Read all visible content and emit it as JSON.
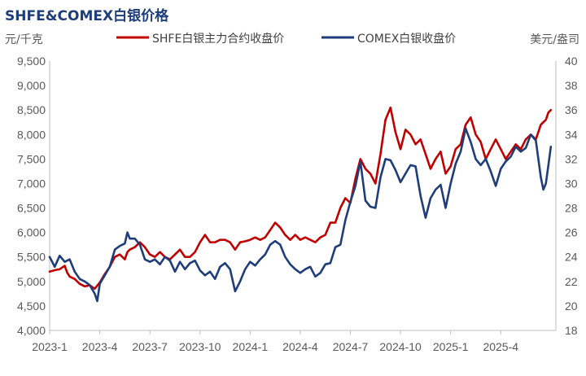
{
  "chart_data": {
    "type": "line",
    "title": "SHFE&COMEX白银价格",
    "left_unit": "元/千克",
    "right_unit": "美元/盎司",
    "x_tick_labels": [
      "2023-1",
      "2023-4",
      "2023-7",
      "2023-10",
      "2024-1",
      "2024-4",
      "2024-7",
      "2024-10",
      "2025-1",
      "2025-4"
    ],
    "left_axis": {
      "min": 4000,
      "max": 9500,
      "step": 500,
      "tick_labels": [
        "4,000",
        "4,500",
        "5,000",
        "5,500",
        "6,000",
        "6,500",
        "7,000",
        "7,500",
        "8,000",
        "8,500",
        "9,000",
        "9,500"
      ]
    },
    "right_axis": {
      "min": 18,
      "max": 40,
      "step": 2,
      "tick_labels": [
        "18",
        "20",
        "22",
        "24",
        "26",
        "28",
        "30",
        "32",
        "34",
        "36",
        "38",
        "40"
      ]
    },
    "x_range": [
      0,
      10.1
    ],
    "series": [
      {
        "name": "SHFE白银主力合约收盘价",
        "axis": "left",
        "color": "#c00000",
        "points": [
          [
            0.0,
            5200
          ],
          [
            0.1,
            5230
          ],
          [
            0.2,
            5250
          ],
          [
            0.3,
            5320
          ],
          [
            0.35,
            5180
          ],
          [
            0.4,
            5100
          ],
          [
            0.5,
            5050
          ],
          [
            0.6,
            4950
          ],
          [
            0.7,
            4900
          ],
          [
            0.8,
            4920
          ],
          [
            0.9,
            4850
          ],
          [
            1.0,
            4980
          ],
          [
            1.1,
            5150
          ],
          [
            1.2,
            5300
          ],
          [
            1.3,
            5500
          ],
          [
            1.4,
            5550
          ],
          [
            1.5,
            5450
          ],
          [
            1.55,
            5600
          ],
          [
            1.6,
            5650
          ],
          [
            1.7,
            5700
          ],
          [
            1.8,
            5800
          ],
          [
            1.9,
            5700
          ],
          [
            2.0,
            5550
          ],
          [
            2.1,
            5500
          ],
          [
            2.2,
            5600
          ],
          [
            2.3,
            5500
          ],
          [
            2.4,
            5450
          ],
          [
            2.5,
            5550
          ],
          [
            2.6,
            5650
          ],
          [
            2.7,
            5500
          ],
          [
            2.8,
            5500
          ],
          [
            2.9,
            5600
          ],
          [
            3.0,
            5800
          ],
          [
            3.1,
            5950
          ],
          [
            3.2,
            5800
          ],
          [
            3.3,
            5800
          ],
          [
            3.4,
            5850
          ],
          [
            3.5,
            5850
          ],
          [
            3.6,
            5800
          ],
          [
            3.7,
            5650
          ],
          [
            3.8,
            5800
          ],
          [
            3.9,
            5820
          ],
          [
            4.0,
            5850
          ],
          [
            4.1,
            5900
          ],
          [
            4.2,
            5850
          ],
          [
            4.3,
            5900
          ],
          [
            4.4,
            6050
          ],
          [
            4.5,
            6200
          ],
          [
            4.6,
            6100
          ],
          [
            4.7,
            5950
          ],
          [
            4.8,
            5850
          ],
          [
            4.9,
            5950
          ],
          [
            5.0,
            5850
          ],
          [
            5.1,
            5900
          ],
          [
            5.2,
            5850
          ],
          [
            5.3,
            5800
          ],
          [
            5.4,
            5900
          ],
          [
            5.5,
            5950
          ],
          [
            5.6,
            6200
          ],
          [
            5.7,
            6200
          ],
          [
            5.8,
            6500
          ],
          [
            5.9,
            6700
          ],
          [
            6.0,
            6600
          ],
          [
            6.1,
            7100
          ],
          [
            6.2,
            7500
          ],
          [
            6.3,
            7300
          ],
          [
            6.4,
            7200
          ],
          [
            6.5,
            7000
          ],
          [
            6.6,
            7600
          ],
          [
            6.7,
            8300
          ],
          [
            6.8,
            8550
          ],
          [
            6.9,
            8050
          ],
          [
            7.0,
            7700
          ],
          [
            7.1,
            8100
          ],
          [
            7.2,
            8000
          ],
          [
            7.3,
            7800
          ],
          [
            7.4,
            7900
          ],
          [
            7.5,
            7600
          ],
          [
            7.6,
            7300
          ],
          [
            7.7,
            7500
          ],
          [
            7.8,
            7650
          ],
          [
            7.9,
            7200
          ],
          [
            8.0,
            7350
          ],
          [
            8.1,
            7700
          ],
          [
            8.2,
            7800
          ],
          [
            8.3,
            8200
          ],
          [
            8.4,
            8350
          ],
          [
            8.5,
            8000
          ],
          [
            8.6,
            7850
          ],
          [
            8.7,
            7500
          ],
          [
            8.8,
            7700
          ],
          [
            8.9,
            7900
          ],
          [
            9.0,
            7700
          ],
          [
            9.1,
            7500
          ],
          [
            9.2,
            7650
          ],
          [
            9.3,
            7800
          ],
          [
            9.4,
            7700
          ],
          [
            9.5,
            7900
          ],
          [
            9.6,
            8000
          ],
          [
            9.7,
            7900
          ],
          [
            9.8,
            8200
          ],
          [
            9.9,
            8300
          ],
          [
            9.95,
            8450
          ],
          [
            10.0,
            8500
          ]
        ]
      },
      {
        "name": "COMEX白银收盘价",
        "axis": "right",
        "color": "#1f3d7a",
        "points": [
          [
            0.0,
            24.0
          ],
          [
            0.1,
            23.2
          ],
          [
            0.2,
            24.1
          ],
          [
            0.3,
            23.6
          ],
          [
            0.4,
            23.8
          ],
          [
            0.5,
            22.8
          ],
          [
            0.6,
            22.2
          ],
          [
            0.7,
            22.0
          ],
          [
            0.8,
            21.7
          ],
          [
            0.9,
            21.0
          ],
          [
            0.95,
            20.4
          ],
          [
            1.0,
            21.8
          ],
          [
            1.1,
            22.5
          ],
          [
            1.2,
            23.2
          ],
          [
            1.3,
            24.6
          ],
          [
            1.4,
            24.9
          ],
          [
            1.5,
            25.1
          ],
          [
            1.55,
            26.0
          ],
          [
            1.6,
            25.5
          ],
          [
            1.7,
            25.5
          ],
          [
            1.8,
            25.0
          ],
          [
            1.9,
            23.8
          ],
          [
            2.0,
            23.6
          ],
          [
            2.1,
            23.8
          ],
          [
            2.2,
            23.4
          ],
          [
            2.3,
            24.0
          ],
          [
            2.4,
            23.7
          ],
          [
            2.5,
            22.8
          ],
          [
            2.6,
            23.6
          ],
          [
            2.7,
            23.0
          ],
          [
            2.8,
            23.5
          ],
          [
            2.9,
            23.7
          ],
          [
            3.0,
            22.9
          ],
          [
            3.1,
            22.5
          ],
          [
            3.2,
            22.8
          ],
          [
            3.3,
            22.2
          ],
          [
            3.4,
            23.2
          ],
          [
            3.5,
            23.5
          ],
          [
            3.6,
            23.0
          ],
          [
            3.7,
            21.2
          ],
          [
            3.8,
            22.0
          ],
          [
            3.9,
            23.0
          ],
          [
            4.0,
            23.6
          ],
          [
            4.1,
            23.3
          ],
          [
            4.2,
            23.8
          ],
          [
            4.3,
            24.2
          ],
          [
            4.4,
            25.0
          ],
          [
            4.5,
            25.3
          ],
          [
            4.6,
            25.0
          ],
          [
            4.7,
            24.0
          ],
          [
            4.8,
            23.4
          ],
          [
            4.9,
            23.0
          ],
          [
            5.0,
            22.7
          ],
          [
            5.1,
            23.0
          ],
          [
            5.2,
            23.2
          ],
          [
            5.3,
            22.4
          ],
          [
            5.4,
            22.7
          ],
          [
            5.5,
            23.4
          ],
          [
            5.6,
            23.5
          ],
          [
            5.7,
            24.8
          ],
          [
            5.8,
            25.0
          ],
          [
            5.9,
            27.0
          ],
          [
            6.0,
            28.5
          ],
          [
            6.1,
            29.8
          ],
          [
            6.2,
            31.8
          ],
          [
            6.3,
            28.6
          ],
          [
            6.4,
            28.1
          ],
          [
            6.5,
            28.0
          ],
          [
            6.6,
            30.5
          ],
          [
            6.7,
            32.0
          ],
          [
            6.8,
            31.9
          ],
          [
            6.9,
            31.1
          ],
          [
            7.0,
            30.1
          ],
          [
            7.1,
            30.8
          ],
          [
            7.2,
            31.5
          ],
          [
            7.3,
            31.4
          ],
          [
            7.4,
            29.0
          ],
          [
            7.5,
            27.2
          ],
          [
            7.6,
            28.8
          ],
          [
            7.7,
            29.5
          ],
          [
            7.8,
            29.9
          ],
          [
            7.9,
            28.0
          ],
          [
            8.0,
            30.0
          ],
          [
            8.1,
            31.6
          ],
          [
            8.2,
            32.6
          ],
          [
            8.3,
            34.5
          ],
          [
            8.4,
            33.4
          ],
          [
            8.5,
            32.0
          ],
          [
            8.6,
            31.5
          ],
          [
            8.7,
            32.0
          ],
          [
            8.8,
            31.0
          ],
          [
            8.9,
            29.8
          ],
          [
            9.0,
            31.2
          ],
          [
            9.1,
            31.8
          ],
          [
            9.2,
            32.2
          ],
          [
            9.3,
            33.0
          ],
          [
            9.4,
            32.6
          ],
          [
            9.5,
            32.9
          ],
          [
            9.6,
            34.0
          ],
          [
            9.7,
            33.5
          ],
          [
            9.8,
            30.5
          ],
          [
            9.85,
            29.5
          ],
          [
            9.9,
            30.0
          ],
          [
            9.95,
            31.5
          ],
          [
            10.0,
            33.0
          ]
        ]
      }
    ]
  }
}
